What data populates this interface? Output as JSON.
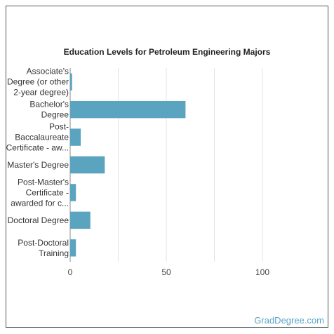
{
  "chart_data": {
    "type": "bar",
    "orientation": "horizontal",
    "title": "Education Levels for Petroleum Engineering Majors",
    "categories": [
      [
        "Associate's",
        "Degree (or other",
        "2-year degree)"
      ],
      [
        "Bachelor's",
        "Degree"
      ],
      [
        "Post-",
        "Baccalaureate",
        "Certificate - aw..."
      ],
      [
        "Master's Degree"
      ],
      [
        "Post-Master's",
        "Certificate -",
        "awarded for c..."
      ],
      [
        "Doctoral Degree"
      ],
      [
        "Post-Doctoral",
        "Training"
      ]
    ],
    "values": [
      1,
      60,
      5.5,
      18,
      3,
      10.5,
      3
    ],
    "xlim": [
      0,
      100
    ],
    "xticks": [
      "0",
      "50",
      "100"
    ],
    "xlabel": "",
    "ylabel": "",
    "grid": true,
    "bar_color": "#5ba4c0"
  },
  "watermark": "GradDegree.com"
}
